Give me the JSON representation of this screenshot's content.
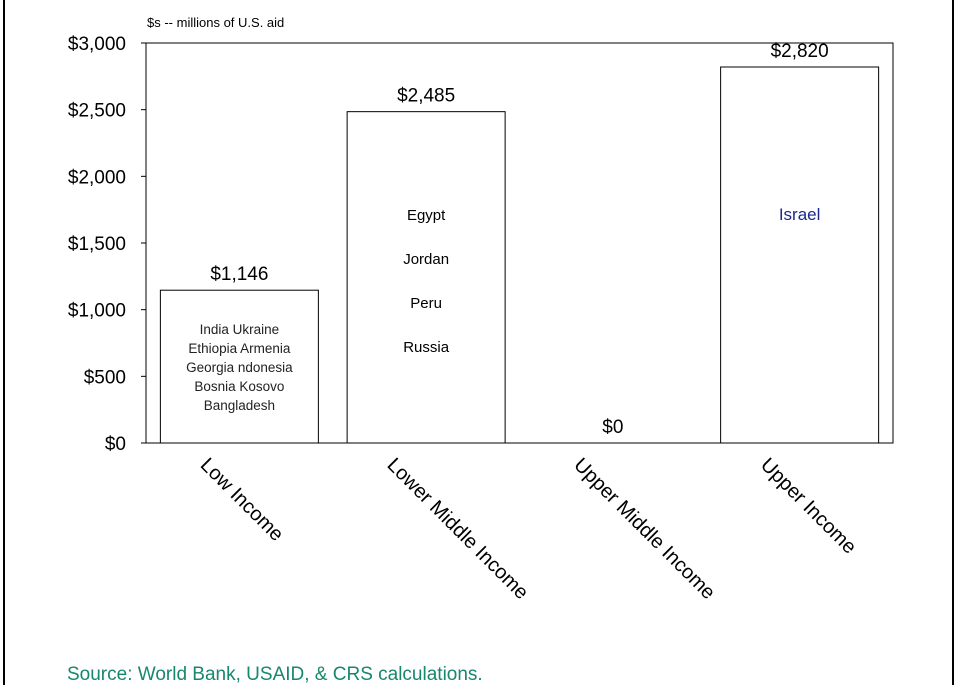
{
  "page": {
    "title": "",
    "unit_label": "$s -- millions of U.S. aid",
    "source": "Source: World Bank, USAID, & CRS calculations."
  },
  "chart_data": {
    "type": "bar",
    "title": "",
    "xlabel": "",
    "ylabel": "$s -- millions of U.S. aid",
    "ylim": [
      0,
      3000
    ],
    "yticks": [
      0,
      500,
      1000,
      1500,
      2000,
      2500,
      3000
    ],
    "ytick_labels": [
      "$0",
      "$500",
      "$1,000",
      "$1,500",
      "$2,000",
      "$2,500",
      "$3,000"
    ],
    "categories": [
      "Low Income",
      "Lower Middle Income",
      "Upper Middle Income",
      "Upper Income"
    ],
    "values": [
      1146,
      2485,
      0,
      2820
    ],
    "value_labels": [
      "$1,146",
      "$2,485",
      "$0",
      "$2,820"
    ],
    "bar_notes": [
      [
        "India  Ukraine",
        "Ethiopia  Armenia",
        "Georgia  ndonesia",
        "Bosnia  Kosovo",
        "Bangladesh"
      ],
      [
        "Egypt",
        "Jordan",
        "Peru",
        "Russia"
      ],
      [],
      [
        "Israel"
      ]
    ],
    "bar_note_colors": [
      "#222222",
      "#000000",
      "#000000",
      "#1a2a8c"
    ],
    "grid": false,
    "legend": "none",
    "colors": {
      "bar_fill": "#ffffff",
      "bar_stroke": "#000000",
      "axis": "#000000",
      "source_text": "#17876e"
    }
  }
}
